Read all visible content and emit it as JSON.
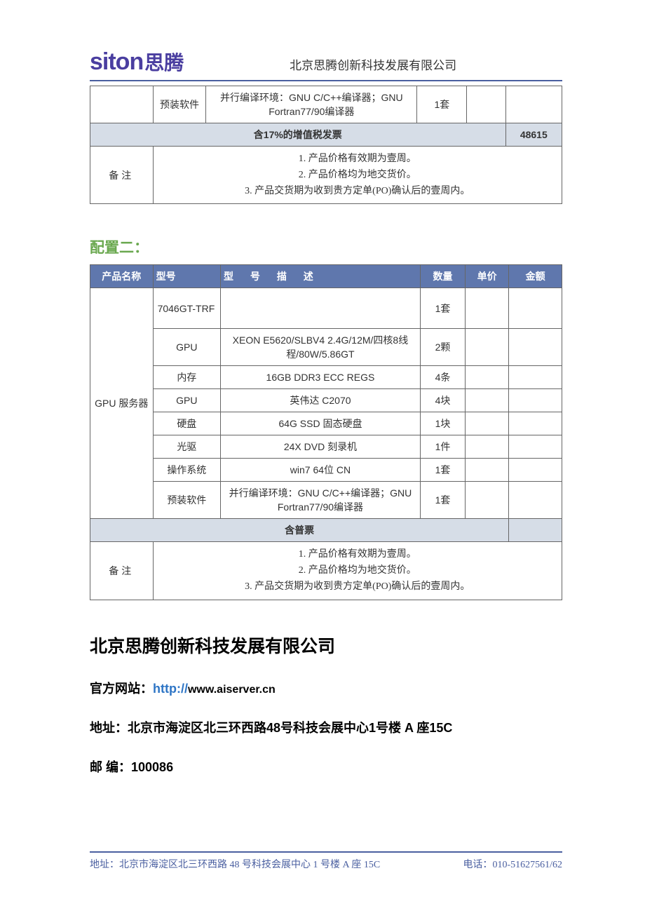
{
  "header": {
    "logo_en": "siton",
    "logo_zh": "思腾",
    "company": "北京思腾创新科技发展有限公司"
  },
  "table1": {
    "row_sw": {
      "comp": "预装软件",
      "desc": "并行编译环境：GNU C/C++编译器；GNU Fortran77/90编译器",
      "qty": "1套"
    },
    "invoice_label": "含17%的增值税发票",
    "total": "48615",
    "remarks_label": "备注",
    "remarks": [
      "1. 产品价格有效期为壹周。",
      "2. 产品价格均为地交货价。",
      "3. 产品交货期为收到贵方定单(PO)确认后的壹周内。"
    ]
  },
  "section2_title": "配置二：",
  "table2": {
    "head": {
      "name": "产品名称",
      "model": "型号",
      "desc": "型 号 描 述",
      "qty": "数量",
      "price": "单价",
      "amount": "金额"
    },
    "product_name": "GPU 服务器",
    "rows": [
      {
        "comp": "7046GT-TRF",
        "comp_align": "left",
        "desc": "",
        "qty": "1套"
      },
      {
        "comp": "GPU",
        "desc": "XEON E5620/SLBV4 2.4G/12M/四核8线程/80W/5.86GT",
        "qty": "2颗"
      },
      {
        "comp": "内存",
        "desc": "16GB DDR3   ECC REGS",
        "qty": "4条"
      },
      {
        "comp": "GPU",
        "desc": "英伟达  C2070",
        "qty": "4块"
      },
      {
        "comp": "硬盘",
        "desc": "64G SSD  固态硬盘",
        "qty": "1块"
      },
      {
        "comp": "光驱",
        "desc": "24X DVD  刻录机",
        "qty": "1件"
      },
      {
        "comp": "操作系统",
        "desc": "win7 64位  CN",
        "qty": "1套"
      },
      {
        "comp": "预装软件",
        "desc": "并行编译环境：GNU C/C++编译器；GNU Fortran77/90编译器",
        "qty": "1套"
      }
    ],
    "invoice_label": "含普票",
    "remarks_label": "备注",
    "remarks": [
      "1. 产品价格有效期为壹周。",
      "2. 产品价格均为地交货价。",
      "3. 产品交货期为收到贵方定单(PO)确认后的壹周内。"
    ]
  },
  "company_block": {
    "company": "北京思腾创新科技发展有限公司",
    "website_label": "官方网站：",
    "website_proto": "http://",
    "website_domain": "www.aiserver.cn",
    "address_label": "地址：",
    "address": "北京市海淀区北三环西路48号科技会展中心1号楼 A 座15C",
    "postcode_label": "邮 编：",
    "postcode": "100086"
  },
  "footer": {
    "address_label": "地址：",
    "address": "北京市海淀区北三环西路 48 号科技会展中心 1 号楼 A 座 15C",
    "tel_label": "电话：",
    "tel": "010-51627561/62"
  },
  "colors": {
    "brand": "#4a3ea0",
    "rule": "#4a5fa0",
    "th_bg": "#5f77ad",
    "th_fg": "#ffffff",
    "shade": "#d6dde7",
    "green": "#6aa84f",
    "link": "#2e75c5"
  }
}
